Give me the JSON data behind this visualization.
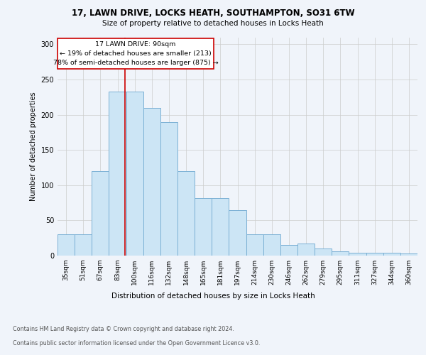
{
  "title1": "17, LAWN DRIVE, LOCKS HEATH, SOUTHAMPTON, SO31 6TW",
  "title2": "Size of property relative to detached houses in Locks Heath",
  "xlabel": "Distribution of detached houses by size in Locks Heath",
  "ylabel": "Number of detached properties",
  "footer1": "Contains HM Land Registry data © Crown copyright and database right 2024.",
  "footer2": "Contains public sector information licensed under the Open Government Licence v3.0.",
  "annotation_line1": "17 LAWN DRIVE: 90sqm",
  "annotation_line2": "← 19% of detached houses are smaller (213)",
  "annotation_line3": "78% of semi-detached houses are larger (875) →",
  "bar_color": "#cce5f5",
  "bar_edge_color": "#7ab0d4",
  "vline_color": "#cc0000",
  "annotation_box_color": "#cc0000",
  "categories": [
    "35sqm",
    "51sqm",
    "67sqm",
    "83sqm",
    "100sqm",
    "116sqm",
    "132sqm",
    "148sqm",
    "165sqm",
    "181sqm",
    "197sqm",
    "214sqm",
    "230sqm",
    "246sqm",
    "262sqm",
    "279sqm",
    "295sqm",
    "311sqm",
    "327sqm",
    "344sqm",
    "360sqm"
  ],
  "values": [
    30,
    30,
    120,
    233,
    233,
    210,
    190,
    120,
    82,
    82,
    65,
    30,
    30,
    15,
    17,
    10,
    6,
    4,
    4,
    4,
    3
  ],
  "ylim": [
    0,
    310
  ],
  "yticks": [
    0,
    50,
    100,
    150,
    200,
    250,
    300
  ],
  "vline_x": 3.44,
  "background_color": "#f0f4fa",
  "grid_color": "#cccccc"
}
